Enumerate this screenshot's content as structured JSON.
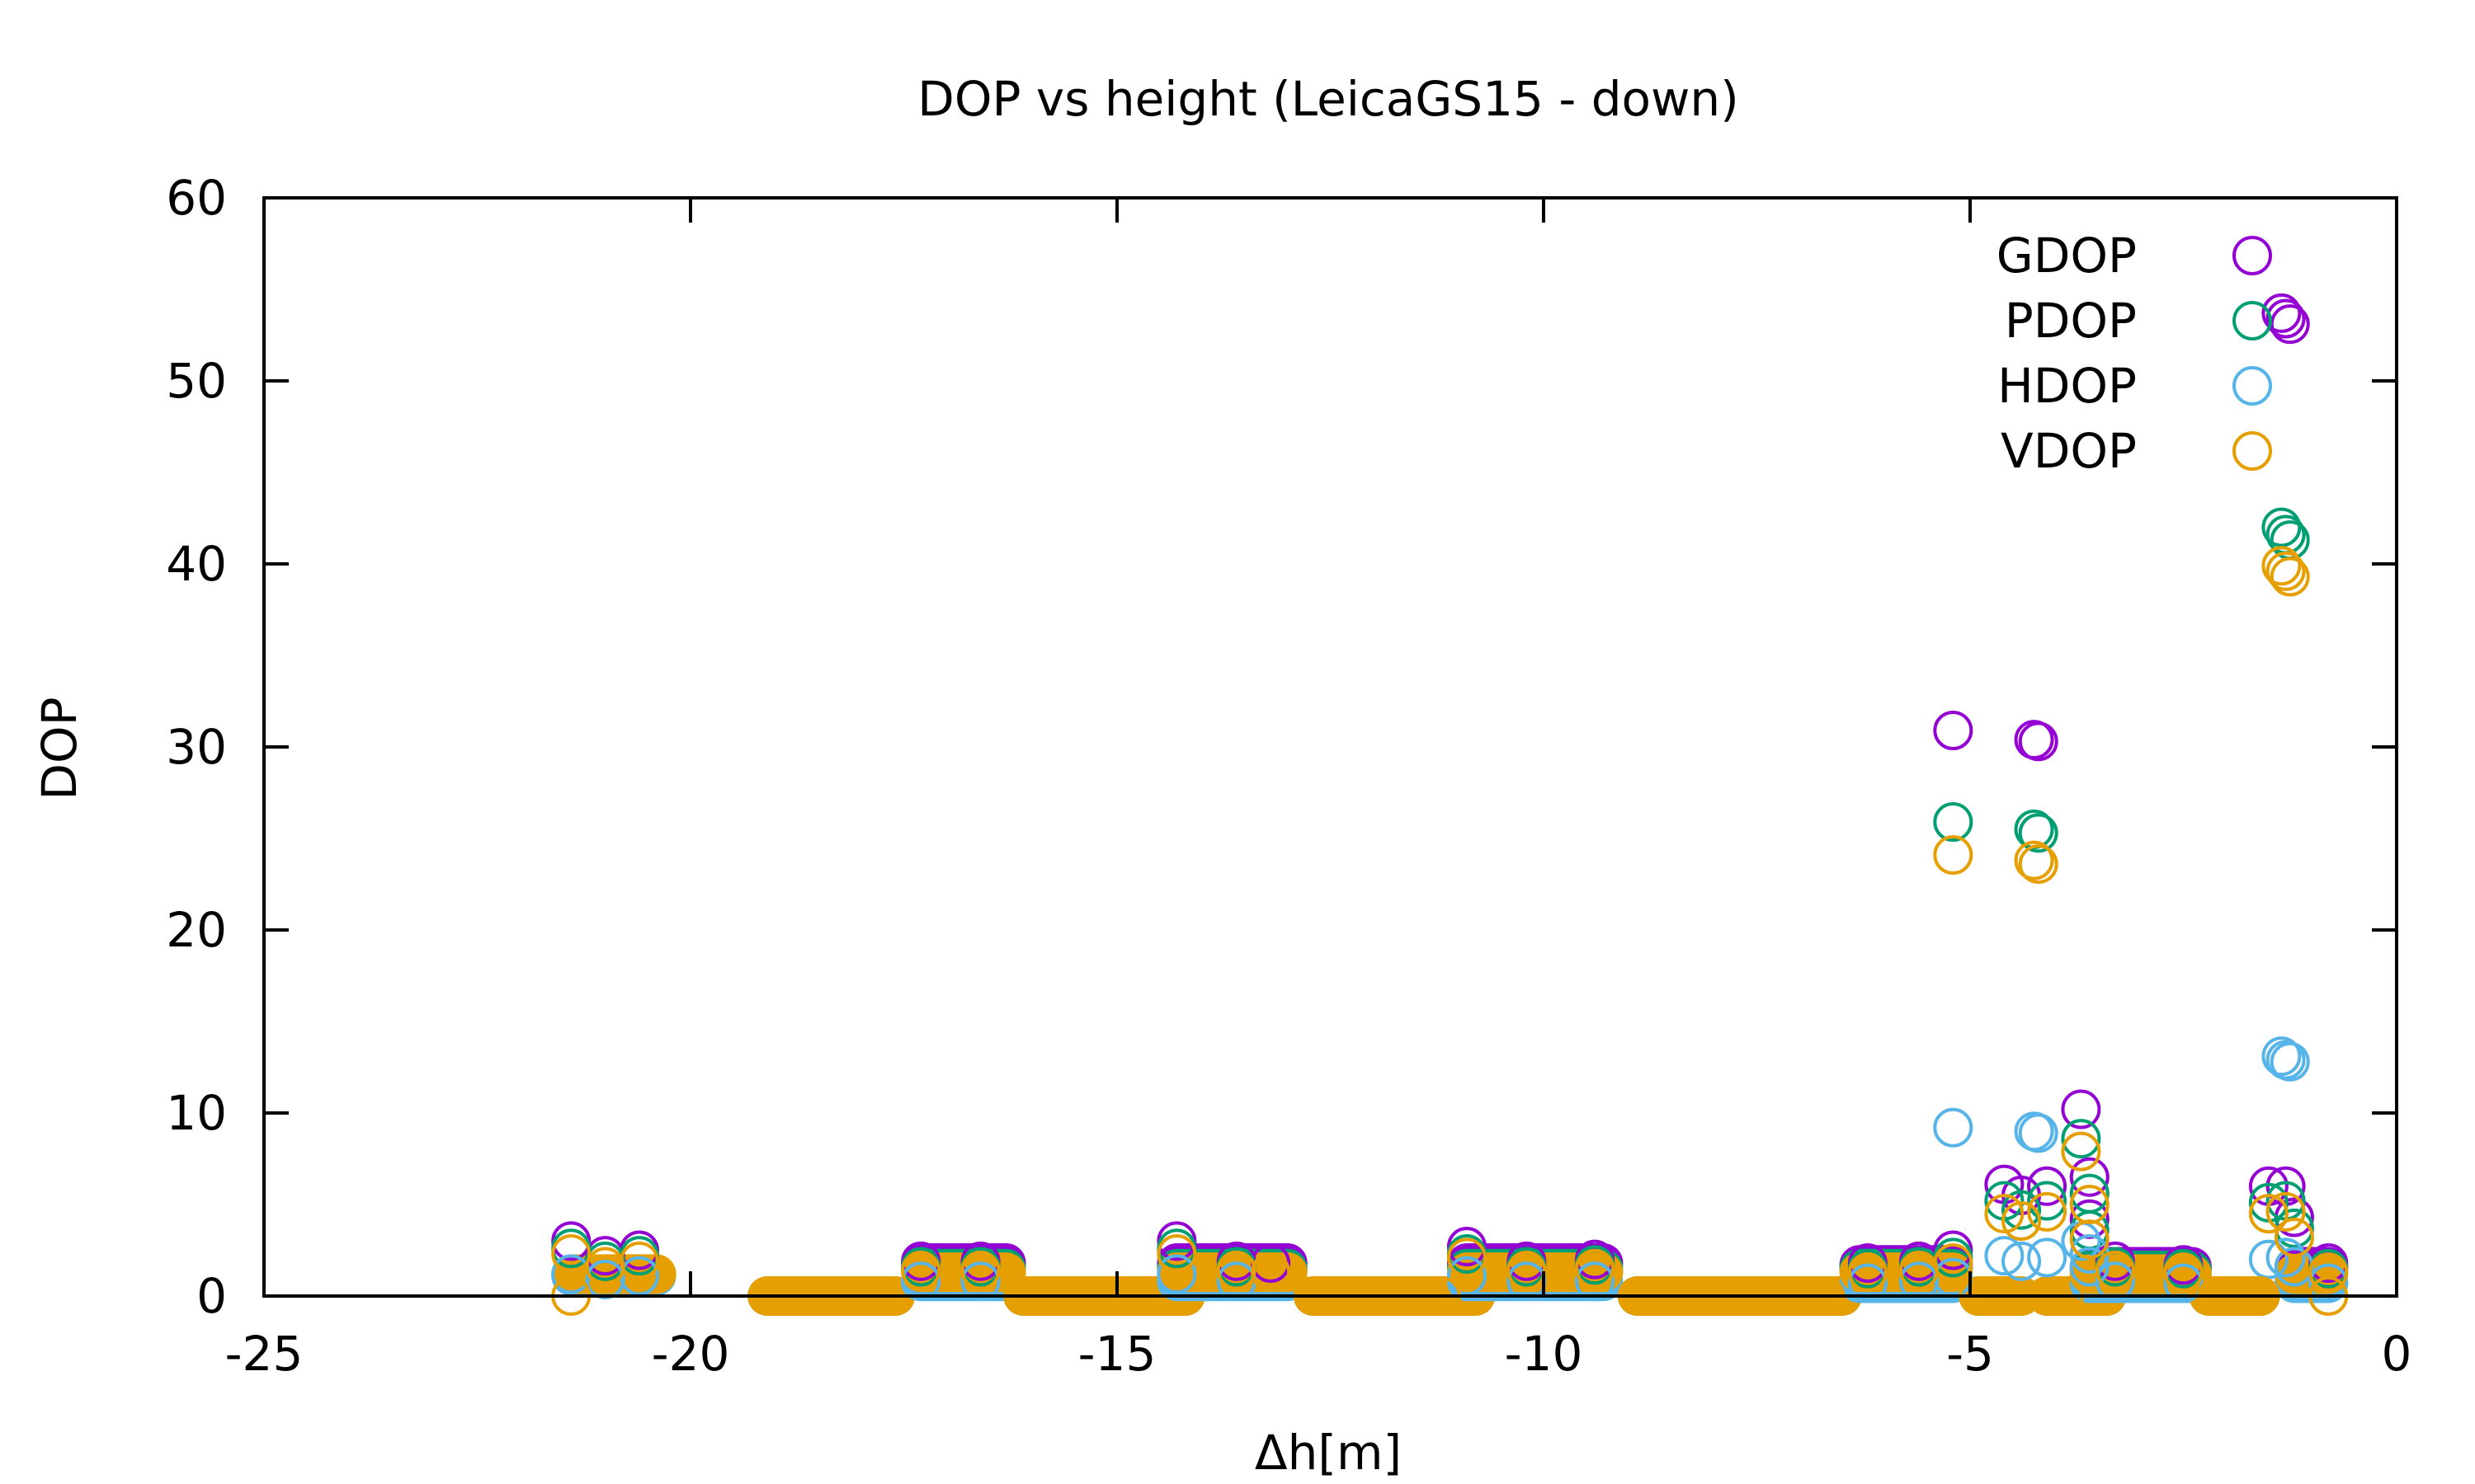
{
  "chart_data": {
    "type": "scatter",
    "title": "DOP vs height (LeicaGS15 - down)",
    "xlabel": "Δh[m]",
    "ylabel": "DOP",
    "xlim": [
      -25,
      0
    ],
    "ylim": [
      0,
      60
    ],
    "x_ticks": [
      -25,
      -20,
      -15,
      -10,
      -5,
      0
    ],
    "y_ticks": [
      0,
      10,
      20,
      30,
      40,
      50,
      60
    ],
    "grid": false,
    "legend_position": "top-right",
    "marker": "open-circle",
    "series": [
      {
        "name": "GDOP",
        "color": "#9400d3",
        "points": [
          [
            -21.4,
            3.0
          ],
          [
            -21.0,
            2.2
          ],
          [
            -20.6,
            2.5
          ],
          [
            -17.3,
            1.9
          ],
          [
            -16.6,
            1.9
          ],
          [
            -14.3,
            3.0
          ],
          [
            -13.6,
            1.9
          ],
          [
            -13.2,
            1.8
          ],
          [
            -10.9,
            2.7
          ],
          [
            -10.2,
            1.9
          ],
          [
            -9.4,
            2.0
          ],
          [
            -6.2,
            1.8
          ],
          [
            -5.6,
            1.9
          ],
          [
            -5.2,
            30.9
          ],
          [
            -5.2,
            2.5
          ],
          [
            -4.6,
            6.1
          ],
          [
            -4.4,
            5.5
          ],
          [
            -4.25,
            30.4
          ],
          [
            -4.2,
            30.3
          ],
          [
            -4.1,
            6.0
          ],
          [
            -3.7,
            10.2
          ],
          [
            -3.6,
            6.5
          ],
          [
            -3.6,
            4.2
          ],
          [
            -3.3,
            1.9
          ],
          [
            -2.5,
            1.7
          ],
          [
            -1.5,
            6.0
          ],
          [
            -1.35,
            53.7
          ],
          [
            -1.3,
            53.4
          ],
          [
            -1.25,
            53.1
          ],
          [
            -1.3,
            6.0
          ],
          [
            -1.2,
            4.3
          ],
          [
            -0.8,
            1.8
          ]
        ]
      },
      {
        "name": "PDOP",
        "color": "#009e73",
        "points": [
          [
            -21.4,
            2.6
          ],
          [
            -21.0,
            1.9
          ],
          [
            -20.6,
            2.2
          ],
          [
            -17.3,
            1.6
          ],
          [
            -16.6,
            1.6
          ],
          [
            -14.3,
            2.6
          ],
          [
            -13.6,
            1.6
          ],
          [
            -10.9,
            2.3
          ],
          [
            -10.2,
            1.6
          ],
          [
            -9.4,
            1.7
          ],
          [
            -6.2,
            1.5
          ],
          [
            -5.6,
            1.6
          ],
          [
            -5.2,
            25.9
          ],
          [
            -5.2,
            2.1
          ],
          [
            -4.6,
            5.2
          ],
          [
            -4.4,
            4.7
          ],
          [
            -4.25,
            25.5
          ],
          [
            -4.2,
            25.3
          ],
          [
            -4.1,
            5.2
          ],
          [
            -3.7,
            8.6
          ],
          [
            -3.6,
            5.6
          ],
          [
            -3.6,
            3.6
          ],
          [
            -3.3,
            1.6
          ],
          [
            -2.5,
            1.5
          ],
          [
            -1.5,
            5.1
          ],
          [
            -1.35,
            42.0
          ],
          [
            -1.3,
            41.6
          ],
          [
            -1.25,
            41.3
          ],
          [
            -1.3,
            5.2
          ],
          [
            -1.2,
            3.7
          ],
          [
            -0.8,
            1.5
          ]
        ]
      },
      {
        "name": "HDOP",
        "color": "#56b4e9",
        "points": [
          [
            -21.4,
            1.2
          ],
          [
            -21.0,
            0.9
          ],
          [
            -20.6,
            1.1
          ],
          [
            -17.3,
            0.8
          ],
          [
            -16.6,
            0.8
          ],
          [
            -14.3,
            1.2
          ],
          [
            -13.6,
            0.8
          ],
          [
            -10.9,
            1.1
          ],
          [
            -10.2,
            0.8
          ],
          [
            -9.4,
            0.8
          ],
          [
            -6.2,
            0.7
          ],
          [
            -5.6,
            0.8
          ],
          [
            -5.2,
            9.2
          ],
          [
            -5.2,
            1.0
          ],
          [
            -4.6,
            2.2
          ],
          [
            -4.4,
            1.9
          ],
          [
            -4.25,
            9.0
          ],
          [
            -4.2,
            8.9
          ],
          [
            -4.1,
            2.1
          ],
          [
            -3.7,
            3.0
          ],
          [
            -3.6,
            2.3
          ],
          [
            -3.6,
            1.6
          ],
          [
            -3.3,
            0.8
          ],
          [
            -2.5,
            0.7
          ],
          [
            -1.5,
            2.0
          ],
          [
            -1.35,
            13.1
          ],
          [
            -1.3,
            12.9
          ],
          [
            -1.25,
            12.8
          ],
          [
            -1.3,
            2.1
          ],
          [
            -1.2,
            1.6
          ],
          [
            -0.8,
            0.7
          ]
        ]
      },
      {
        "name": "VDOP",
        "color": "#e69f00",
        "points": [
          [
            -21.4,
            0.0
          ],
          [
            -21.4,
            2.3
          ],
          [
            -21.0,
            1.6
          ],
          [
            -20.6,
            1.9
          ],
          [
            -19.0,
            0.0
          ],
          [
            -18.4,
            0.0
          ],
          [
            -17.8,
            0.0
          ],
          [
            -17.3,
            1.4
          ],
          [
            -16.6,
            1.4
          ],
          [
            -16.0,
            0.0
          ],
          [
            -15.4,
            0.0
          ],
          [
            -14.9,
            0.0
          ],
          [
            -14.3,
            2.3
          ],
          [
            -13.6,
            1.4
          ],
          [
            -13.2,
            1.3
          ],
          [
            -12.5,
            0.0
          ],
          [
            -11.8,
            0.0
          ],
          [
            -11.2,
            0.0
          ],
          [
            -10.9,
            2.1
          ],
          [
            -10.2,
            1.4
          ],
          [
            -9.4,
            1.5
          ],
          [
            -8.7,
            0.0
          ],
          [
            -8.0,
            0.0
          ],
          [
            -7.3,
            0.0
          ],
          [
            -6.7,
            0.0
          ],
          [
            -6.2,
            1.3
          ],
          [
            -5.6,
            1.4
          ],
          [
            -5.2,
            24.1
          ],
          [
            -5.2,
            1.8
          ],
          [
            -4.9,
            0.0
          ],
          [
            -4.6,
            4.5
          ],
          [
            -4.4,
            4.1
          ],
          [
            -4.25,
            23.8
          ],
          [
            -4.2,
            23.6
          ],
          [
            -4.1,
            4.6
          ],
          [
            -3.9,
            0.0
          ],
          [
            -3.7,
            7.9
          ],
          [
            -3.6,
            5.0
          ],
          [
            -3.6,
            3.1
          ],
          [
            -3.3,
            1.4
          ],
          [
            -2.5,
            1.3
          ],
          [
            -2.1,
            0.0
          ],
          [
            -1.6,
            0.0
          ],
          [
            -1.5,
            4.5
          ],
          [
            -1.35,
            39.9
          ],
          [
            -1.3,
            39.6
          ],
          [
            -1.25,
            39.3
          ],
          [
            -1.3,
            4.6
          ],
          [
            -1.2,
            3.2
          ],
          [
            -0.8,
            0.0
          ],
          [
            -0.8,
            1.3
          ]
        ]
      }
    ],
    "segments": [
      {
        "series": "HDOP",
        "x": [
          -21.4,
          -20.4
        ],
        "y": 1.1
      },
      {
        "series": "VDOP",
        "x": [
          -21.4,
          -20.4
        ],
        "y": 1.2
      },
      {
        "series": "HDOP",
        "x": [
          -19.1,
          -17.6
        ],
        "y": 0.0
      },
      {
        "series": "VDOP",
        "x": [
          -19.1,
          -17.6
        ],
        "y": 0.0
      },
      {
        "series": "GDOP",
        "x": [
          -17.3,
          -16.3
        ],
        "y": 1.8
      },
      {
        "series": "PDOP",
        "x": [
          -17.3,
          -16.3
        ],
        "y": 1.5
      },
      {
        "series": "HDOP",
        "x": [
          -17.3,
          -16.3
        ],
        "y": 0.8
      },
      {
        "series": "VDOP",
        "x": [
          -17.3,
          -16.3
        ],
        "y": 1.3
      },
      {
        "series": "HDOP",
        "x": [
          -16.1,
          -14.2
        ],
        "y": 0.0
      },
      {
        "series": "VDOP",
        "x": [
          -16.1,
          -14.2
        ],
        "y": 0.0
      },
      {
        "series": "GDOP",
        "x": [
          -14.3,
          -13.0
        ],
        "y": 1.8
      },
      {
        "series": "PDOP",
        "x": [
          -14.3,
          -13.0
        ],
        "y": 1.5
      },
      {
        "series": "HDOP",
        "x": [
          -14.3,
          -13.0
        ],
        "y": 0.8
      },
      {
        "series": "VDOP",
        "x": [
          -14.3,
          -13.0
        ],
        "y": 1.3
      },
      {
        "series": "HDOP",
        "x": [
          -12.7,
          -10.8
        ],
        "y": 0.0
      },
      {
        "series": "VDOP",
        "x": [
          -12.7,
          -10.8
        ],
        "y": 0.0
      },
      {
        "series": "GDOP",
        "x": [
          -10.9,
          -9.3
        ],
        "y": 1.8
      },
      {
        "series": "PDOP",
        "x": [
          -10.9,
          -9.3
        ],
        "y": 1.5
      },
      {
        "series": "HDOP",
        "x": [
          -10.9,
          -9.3
        ],
        "y": 0.8
      },
      {
        "series": "VDOP",
        "x": [
          -10.9,
          -9.3
        ],
        "y": 1.3
      },
      {
        "series": "HDOP",
        "x": [
          -8.9,
          -6.5
        ],
        "y": 0.0
      },
      {
        "series": "VDOP",
        "x": [
          -8.9,
          -6.5
        ],
        "y": 0.0
      },
      {
        "series": "GDOP",
        "x": [
          -6.3,
          -5.2
        ],
        "y": 1.7
      },
      {
        "series": "PDOP",
        "x": [
          -6.3,
          -5.2
        ],
        "y": 1.5
      },
      {
        "series": "HDOP",
        "x": [
          -6.3,
          -5.2
        ],
        "y": 0.7
      },
      {
        "series": "VDOP",
        "x": [
          -6.3,
          -5.2
        ],
        "y": 1.3
      },
      {
        "series": "HDOP",
        "x": [
          -4.9,
          -4.4
        ],
        "y": 0.0
      },
      {
        "series": "VDOP",
        "x": [
          -4.9,
          -4.4
        ],
        "y": 0.0
      },
      {
        "series": "HDOP",
        "x": [
          -4.1,
          -3.4
        ],
        "y": 0.0
      },
      {
        "series": "VDOP",
        "x": [
          -4.1,
          -3.4
        ],
        "y": 0.0
      },
      {
        "series": "GDOP",
        "x": [
          -3.6,
          -2.4
        ],
        "y": 1.6
      },
      {
        "series": "PDOP",
        "x": [
          -3.6,
          -2.4
        ],
        "y": 1.4
      },
      {
        "series": "HDOP",
        "x": [
          -3.6,
          -2.4
        ],
        "y": 0.7
      },
      {
        "series": "VDOP",
        "x": [
          -3.6,
          -2.4
        ],
        "y": 1.2
      },
      {
        "series": "HDOP",
        "x": [
          -2.2,
          -1.6
        ],
        "y": 0.0
      },
      {
        "series": "VDOP",
        "x": [
          -2.2,
          -1.6
        ],
        "y": 0.0
      },
      {
        "series": "GDOP",
        "x": [
          -1.2,
          -0.8
        ],
        "y": 1.6
      },
      {
        "series": "HDOP",
        "x": [
          -1.2,
          -0.8
        ],
        "y": 0.7
      },
      {
        "series": "VDOP",
        "x": [
          -1.2,
          -0.8
        ],
        "y": 1.2
      }
    ]
  }
}
